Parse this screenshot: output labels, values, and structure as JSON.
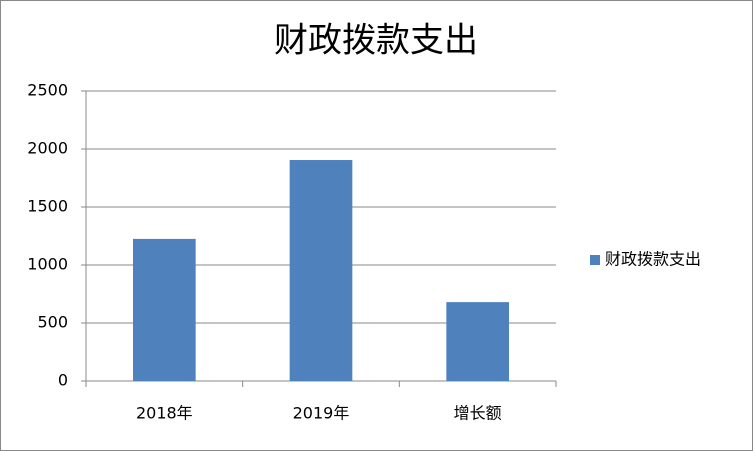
{
  "chart_data": {
    "type": "bar",
    "title": "财政拨款支出",
    "categories": [
      "2018年",
      "2019年",
      "增长额"
    ],
    "series": [
      {
        "name": "财政拨款支出",
        "color": "#4f81bd",
        "values": [
          1225,
          1905,
          680
        ]
      }
    ],
    "ylim": [
      0,
      2500
    ],
    "yticks": [
      0,
      500,
      1000,
      1500,
      2000,
      2500
    ],
    "grid": true,
    "legend": "right"
  }
}
